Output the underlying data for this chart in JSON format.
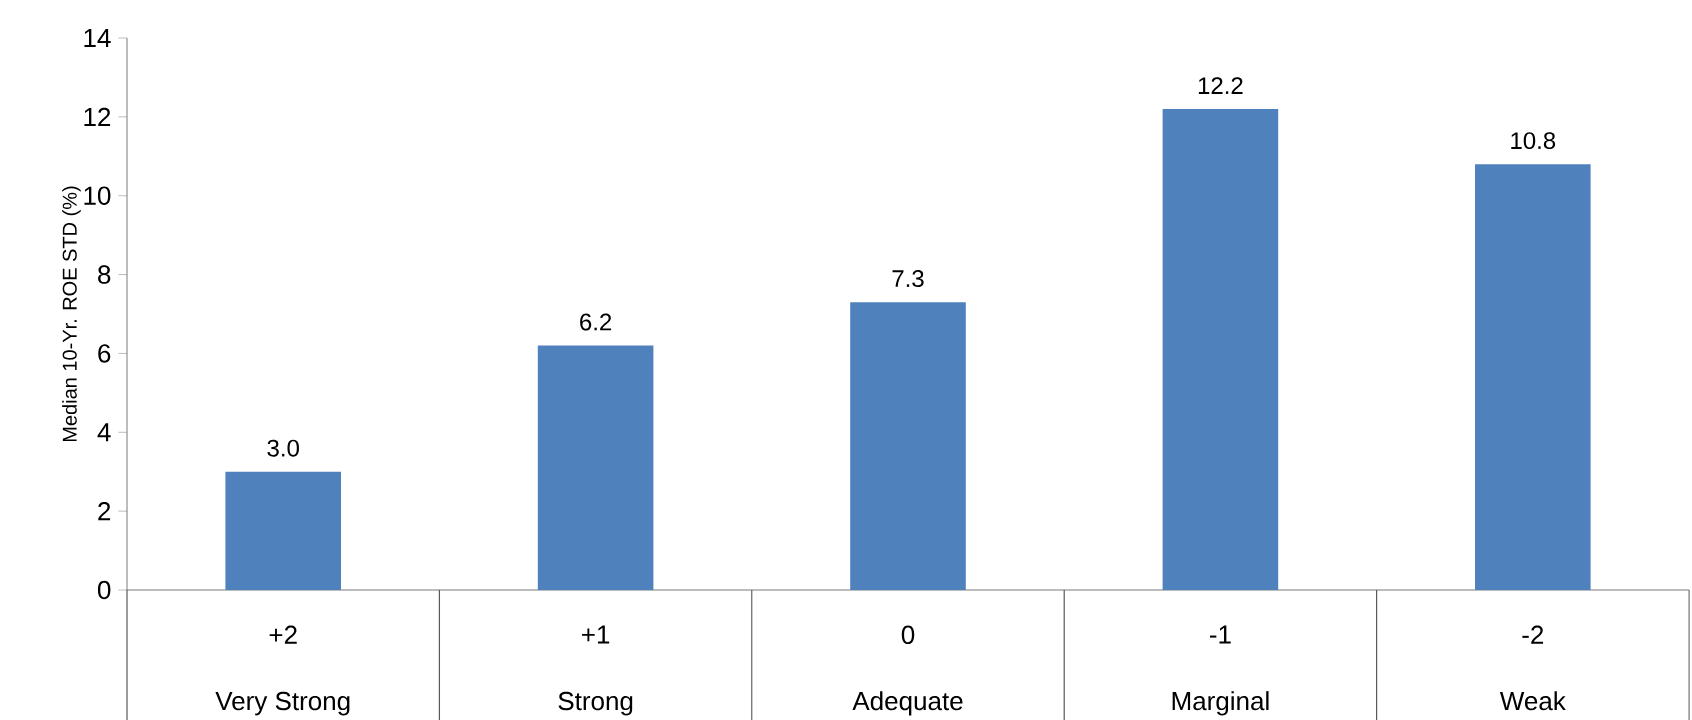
{
  "chart_data": {
    "type": "bar",
    "ylabel": "Median 10-Yr. ROE STD (%)",
    "categories": [
      "+2",
      "+1",
      "0",
      "-1",
      "-2"
    ],
    "values": [
      3.0,
      6.2,
      7.3,
      12.2,
      10.8
    ],
    "color": "#4f81bd",
    "ylim": [
      0,
      14
    ],
    "yticks": [
      0,
      2,
      4,
      6,
      8,
      10,
      12,
      14
    ],
    "value_labels": [
      "3.0",
      "6.2",
      "7.3",
      "12.2",
      "10.8"
    ],
    "annotations": [
      "Very Strong",
      "Strong",
      "Adequate",
      "Marginal",
      "Weak"
    ]
  }
}
